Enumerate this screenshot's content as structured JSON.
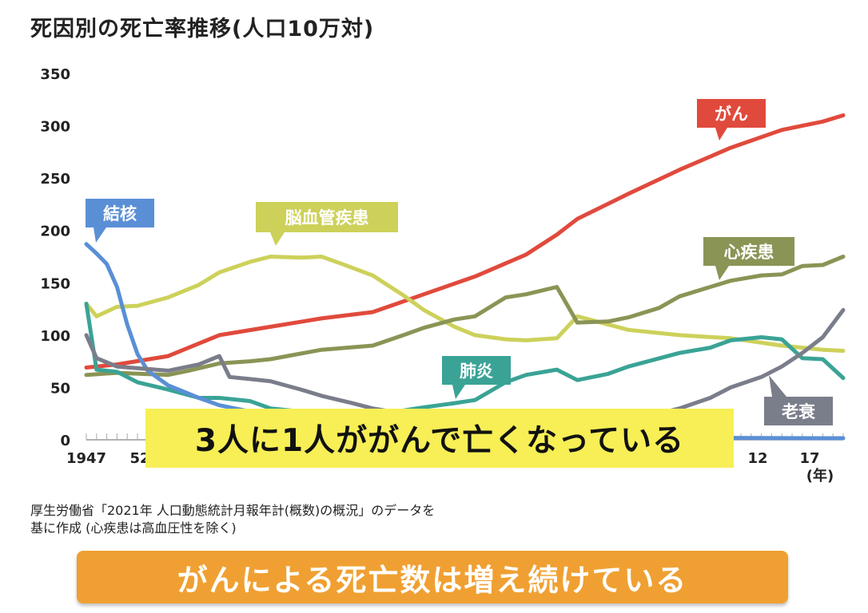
{
  "title": "死因別の死亡率推移(人口10万対)",
  "headline": "3人に1人ががんで亡くなっている",
  "source_line1": "厚生労働省「2021年 人口動態統計月報年計(概数)の概況」のデータを",
  "source_line2": "基に作成 (心疾患は高血圧性を除く)",
  "bottom_banner": "がんによる死亡数は増え続けている",
  "chart_data": {
    "type": "line",
    "xlabel": "(年)",
    "x_tick_labels": [
      "1947",
      "52",
      "12",
      "17"
    ],
    "y_ticks": [
      0,
      50,
      100,
      150,
      200,
      250,
      300,
      350
    ],
    "ylim": [
      0,
      350
    ],
    "xlim": [
      1947,
      2021
    ],
    "grid": false,
    "series": [
      {
        "name": "がん",
        "color": "#e04a3c",
        "points": [
          [
            1947,
            69
          ],
          [
            1950,
            72
          ],
          [
            1955,
            80
          ],
          [
            1960,
            100
          ],
          [
            1965,
            108
          ],
          [
            1970,
            116
          ],
          [
            1975,
            122
          ],
          [
            1980,
            139
          ],
          [
            1985,
            156
          ],
          [
            1990,
            177
          ],
          [
            1993,
            196
          ],
          [
            1995,
            211
          ],
          [
            2000,
            235
          ],
          [
            2005,
            258
          ],
          [
            2010,
            279
          ],
          [
            2015,
            296
          ],
          [
            2019,
            304
          ],
          [
            2021,
            310
          ]
        ]
      },
      {
        "name": "脳血管疾患",
        "color": "#cdd15a",
        "points": [
          [
            1947,
            130
          ],
          [
            1948,
            118
          ],
          [
            1950,
            127
          ],
          [
            1952,
            128
          ],
          [
            1955,
            136
          ],
          [
            1958,
            148
          ],
          [
            1960,
            160
          ],
          [
            1963,
            170
          ],
          [
            1965,
            175
          ],
          [
            1968,
            174
          ],
          [
            1970,
            175
          ],
          [
            1972,
            168
          ],
          [
            1975,
            157
          ],
          [
            1978,
            138
          ],
          [
            1980,
            124
          ],
          [
            1983,
            108
          ],
          [
            1985,
            100
          ],
          [
            1988,
            96
          ],
          [
            1990,
            95
          ],
          [
            1993,
            97
          ],
          [
            1995,
            118
          ],
          [
            2000,
            105
          ],
          [
            2005,
            100
          ],
          [
            2010,
            97
          ],
          [
            2015,
            90
          ],
          [
            2019,
            86
          ],
          [
            2021,
            85
          ]
        ]
      },
      {
        "name": "心疾患",
        "color": "#8a9455",
        "points": [
          [
            1947,
            62
          ],
          [
            1950,
            64
          ],
          [
            1955,
            62
          ],
          [
            1957,
            66
          ],
          [
            1960,
            73
          ],
          [
            1963,
            75
          ],
          [
            1965,
            77
          ],
          [
            1970,
            86
          ],
          [
            1975,
            90
          ],
          [
            1978,
            100
          ],
          [
            1980,
            107
          ],
          [
            1983,
            115
          ],
          [
            1985,
            118
          ],
          [
            1988,
            136
          ],
          [
            1990,
            139
          ],
          [
            1993,
            146
          ],
          [
            1995,
            112
          ],
          [
            1998,
            113
          ],
          [
            2000,
            117
          ],
          [
            2003,
            126
          ],
          [
            2005,
            137
          ],
          [
            2008,
            146
          ],
          [
            2010,
            152
          ],
          [
            2013,
            157
          ],
          [
            2015,
            158
          ],
          [
            2017,
            166
          ],
          [
            2019,
            167
          ],
          [
            2021,
            175
          ]
        ]
      },
      {
        "name": "肺炎",
        "color": "#3aa396",
        "points": [
          [
            1947,
            130
          ],
          [
            1948,
            67
          ],
          [
            1950,
            65
          ],
          [
            1952,
            55
          ],
          [
            1955,
            48
          ],
          [
            1958,
            40
          ],
          [
            1960,
            40
          ],
          [
            1963,
            37
          ],
          [
            1965,
            30
          ],
          [
            1970,
            25
          ],
          [
            1975,
            25
          ],
          [
            1978,
            28
          ],
          [
            1980,
            31
          ],
          [
            1983,
            35
          ],
          [
            1985,
            38
          ],
          [
            1988,
            55
          ],
          [
            1990,
            62
          ],
          [
            1993,
            67
          ],
          [
            1995,
            57
          ],
          [
            1998,
            63
          ],
          [
            2000,
            70
          ],
          [
            2005,
            83
          ],
          [
            2008,
            88
          ],
          [
            2010,
            95
          ],
          [
            2013,
            98
          ],
          [
            2015,
            96
          ],
          [
            2017,
            78
          ],
          [
            2019,
            77
          ],
          [
            2021,
            59
          ]
        ]
      },
      {
        "name": "結核",
        "color": "#5a8fd6",
        "points": [
          [
            1947,
            187
          ],
          [
            1948,
            178
          ],
          [
            1949,
            168
          ],
          [
            1950,
            146
          ],
          [
            1951,
            110
          ],
          [
            1952,
            82
          ],
          [
            1953,
            66
          ],
          [
            1955,
            52
          ],
          [
            1958,
            40
          ],
          [
            1960,
            33
          ],
          [
            1963,
            27
          ],
          [
            1965,
            22
          ],
          [
            1968,
            17
          ],
          [
            1970,
            15
          ],
          [
            1975,
            9
          ],
          [
            1980,
            6
          ],
          [
            1985,
            4
          ],
          [
            1990,
            3
          ],
          [
            1995,
            2.5
          ],
          [
            2000,
            2
          ],
          [
            2005,
            2
          ],
          [
            2010,
            1.8
          ],
          [
            2015,
            1.6
          ],
          [
            2021,
            1.5
          ]
        ]
      },
      {
        "name": "老衰",
        "color": "#7a7d8a",
        "points": [
          [
            1947,
            100
          ],
          [
            1948,
            78
          ],
          [
            1950,
            70
          ],
          [
            1955,
            66
          ],
          [
            1958,
            72
          ],
          [
            1960,
            80
          ],
          [
            1961,
            60
          ],
          [
            1963,
            58
          ],
          [
            1965,
            56
          ],
          [
            1968,
            48
          ],
          [
            1970,
            42
          ],
          [
            1973,
            35
          ],
          [
            1975,
            30
          ],
          [
            1978,
            25
          ],
          [
            1980,
            23
          ],
          [
            1983,
            20
          ],
          [
            1985,
            18
          ],
          [
            1990,
            16
          ],
          [
            1995,
            15
          ],
          [
            2000,
            17
          ],
          [
            2003,
            25
          ],
          [
            2005,
            30
          ],
          [
            2008,
            40
          ],
          [
            2010,
            50
          ],
          [
            2013,
            60
          ],
          [
            2015,
            70
          ],
          [
            2017,
            83
          ],
          [
            2019,
            98
          ],
          [
            2021,
            124
          ]
        ]
      }
    ]
  }
}
